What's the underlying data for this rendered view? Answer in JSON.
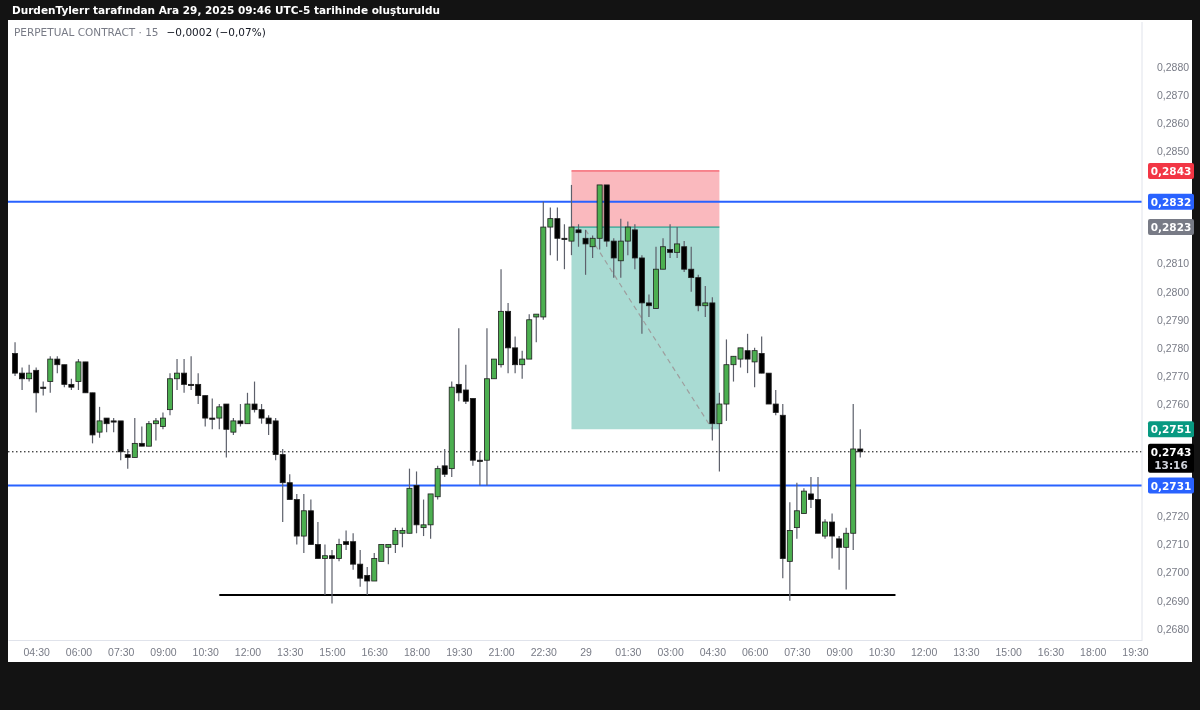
{
  "chart_data": {
    "type": "candlestick",
    "title": "PERPETUAL CONTRACT · 15",
    "subtitle": "−0,0002 (−0,07%)",
    "x": [
      "2025-12-28T03:45",
      "2025-12-28T04:00",
      "2025-12-28T04:15",
      "2025-12-28T04:30",
      "2025-12-28T04:45",
      "2025-12-28T05:00",
      "2025-12-28T05:15",
      "2025-12-28T05:30",
      "2025-12-28T05:45",
      "2025-12-28T06:00",
      "2025-12-28T06:15",
      "2025-12-28T06:30",
      "2025-12-28T06:45",
      "2025-12-28T07:00",
      "2025-12-28T07:15",
      "2025-12-28T07:30",
      "2025-12-28T07:45",
      "2025-12-28T08:00",
      "2025-12-28T08:15",
      "2025-12-28T08:30",
      "2025-12-28T08:45",
      "2025-12-28T09:00",
      "2025-12-28T09:15",
      "2025-12-28T09:30",
      "2025-12-28T09:45",
      "2025-12-28T10:00",
      "2025-12-28T10:15",
      "2025-12-28T10:30",
      "2025-12-28T10:45",
      "2025-12-28T11:00",
      "2025-12-28T11:15",
      "2025-12-28T11:30",
      "2025-12-28T11:45",
      "2025-12-28T12:00",
      "2025-12-28T12:15",
      "2025-12-28T12:30",
      "2025-12-28T12:45",
      "2025-12-28T13:00",
      "2025-12-28T13:15",
      "2025-12-28T13:30",
      "2025-12-28T13:45",
      "2025-12-28T14:00",
      "2025-12-28T14:15",
      "2025-12-28T14:30",
      "2025-12-28T14:45",
      "2025-12-28T15:00",
      "2025-12-28T15:15",
      "2025-12-28T15:30",
      "2025-12-28T15:45",
      "2025-12-28T16:00",
      "2025-12-28T16:15",
      "2025-12-28T16:30",
      "2025-12-28T16:45",
      "2025-12-28T17:00",
      "2025-12-28T17:15",
      "2025-12-28T17:30",
      "2025-12-28T17:45",
      "2025-12-28T18:00",
      "2025-12-28T18:15",
      "2025-12-28T18:30",
      "2025-12-28T18:45",
      "2025-12-28T19:00",
      "2025-12-28T19:15",
      "2025-12-28T19:30",
      "2025-12-28T19:45",
      "2025-12-28T20:00",
      "2025-12-28T20:15",
      "2025-12-28T20:30",
      "2025-12-28T20:45",
      "2025-12-28T21:00",
      "2025-12-28T21:15",
      "2025-12-28T21:30",
      "2025-12-28T21:45",
      "2025-12-28T22:00",
      "2025-12-28T22:15",
      "2025-12-28T22:30",
      "2025-12-28T22:45",
      "2025-12-28T23:00",
      "2025-12-28T23:15",
      "2025-12-28T23:30",
      "2025-12-28T23:45",
      "2025-12-29T00:00",
      "2025-12-29T00:15",
      "2025-12-29T00:30",
      "2025-12-29T00:45",
      "2025-12-29T01:00",
      "2025-12-29T01:15",
      "2025-12-29T01:30",
      "2025-12-29T01:45",
      "2025-12-29T02:00",
      "2025-12-29T02:15",
      "2025-12-29T02:30",
      "2025-12-29T02:45",
      "2025-12-29T03:00",
      "2025-12-29T03:15",
      "2025-12-29T03:30",
      "2025-12-29T03:45",
      "2025-12-29T04:00",
      "2025-12-29T04:15",
      "2025-12-29T04:30",
      "2025-12-29T04:45",
      "2025-12-29T05:00",
      "2025-12-29T05:15",
      "2025-12-29T05:30",
      "2025-12-29T05:45",
      "2025-12-29T06:00",
      "2025-12-29T06:15",
      "2025-12-29T06:30",
      "2025-12-29T06:45",
      "2025-12-29T07:00",
      "2025-12-29T07:15",
      "2025-12-29T07:30",
      "2025-12-29T07:45",
      "2025-12-29T08:00",
      "2025-12-29T08:15",
      "2025-12-29T08:30",
      "2025-12-29T08:45",
      "2025-12-29T09:00",
      "2025-12-29T09:15",
      "2025-12-29T09:30",
      "2025-12-29T09:45"
    ],
    "ohlc": [
      [
        0.2778,
        0.2782,
        0.277,
        0.2771
      ],
      [
        0.2771,
        0.2773,
        0.2765,
        0.2769
      ],
      [
        0.2769,
        0.2774,
        0.2768,
        0.2771
      ],
      [
        0.2772,
        0.2773,
        0.2757,
        0.2764
      ],
      [
        0.2766,
        0.2768,
        0.2763,
        0.2766
      ],
      [
        0.2768,
        0.2777,
        0.2764,
        0.2776
      ],
      [
        0.2776,
        0.2777,
        0.2771,
        0.2774
      ],
      [
        0.2774,
        0.2774,
        0.2766,
        0.2767
      ],
      [
        0.2767,
        0.2769,
        0.2765,
        0.2766
      ],
      [
        0.2768,
        0.2776,
        0.2765,
        0.2775
      ],
      [
        0.2775,
        0.2775,
        0.2764,
        0.2764
      ],
      [
        0.2764,
        0.2764,
        0.2746,
        0.2749
      ],
      [
        0.275,
        0.2759,
        0.2748,
        0.2754
      ],
      [
        0.2755,
        0.2755,
        0.275,
        0.2753
      ],
      [
        0.2754,
        0.2755,
        0.275,
        0.2754
      ],
      [
        0.2754,
        0.2754,
        0.274,
        0.2743
      ],
      [
        0.2742,
        0.2744,
        0.2737,
        0.2741
      ],
      [
        0.2741,
        0.2755,
        0.2741,
        0.2746
      ],
      [
        0.2746,
        0.2752,
        0.2745,
        0.2745
      ],
      [
        0.2745,
        0.2754,
        0.2745,
        0.2753
      ],
      [
        0.2753,
        0.2755,
        0.2747,
        0.2754
      ],
      [
        0.2752,
        0.2757,
        0.2751,
        0.2755
      ],
      [
        0.2758,
        0.2771,
        0.2756,
        0.2769
      ],
      [
        0.2769,
        0.2776,
        0.2765,
        0.2771
      ],
      [
        0.2771,
        0.2776,
        0.2764,
        0.2767
      ],
      [
        0.2767,
        0.2777,
        0.2765,
        0.2767
      ],
      [
        0.2767,
        0.2771,
        0.276,
        0.2763
      ],
      [
        0.2763,
        0.2763,
        0.2752,
        0.2755
      ],
      [
        0.2755,
        0.2762,
        0.2751,
        0.2755
      ],
      [
        0.2755,
        0.276,
        0.2751,
        0.2759
      ],
      [
        0.276,
        0.276,
        0.2741,
        0.2751
      ],
      [
        0.275,
        0.2755,
        0.2749,
        0.2754
      ],
      [
        0.2754,
        0.276,
        0.2752,
        0.2753
      ],
      [
        0.2753,
        0.2764,
        0.2753,
        0.276
      ],
      [
        0.276,
        0.2768,
        0.2757,
        0.2758
      ],
      [
        0.2758,
        0.276,
        0.2753,
        0.2755
      ],
      [
        0.2755,
        0.2756,
        0.2749,
        0.2753
      ],
      [
        0.2754,
        0.2755,
        0.274,
        0.2742
      ],
      [
        0.2742,
        0.2744,
        0.2718,
        0.2732
      ],
      [
        0.2732,
        0.2735,
        0.2726,
        0.2726
      ],
      [
        0.2726,
        0.2728,
        0.271,
        0.2713
      ],
      [
        0.2713,
        0.2728,
        0.2707,
        0.2722
      ],
      [
        0.2722,
        0.2726,
        0.271,
        0.271
      ],
      [
        0.271,
        0.2718,
        0.2705,
        0.2705
      ],
      [
        0.2705,
        0.271,
        0.2692,
        0.2706
      ],
      [
        0.2706,
        0.2708,
        0.2689,
        0.2705
      ],
      [
        0.2705,
        0.2712,
        0.2704,
        0.271
      ],
      [
        0.2711,
        0.2715,
        0.2708,
        0.271
      ],
      [
        0.2711,
        0.2714,
        0.2701,
        0.2703
      ],
      [
        0.2703,
        0.2708,
        0.2695,
        0.2698
      ],
      [
        0.2699,
        0.2702,
        0.2692,
        0.2697
      ],
      [
        0.2697,
        0.2707,
        0.2697,
        0.2705
      ],
      [
        0.2704,
        0.271,
        0.2704,
        0.271
      ],
      [
        0.2709,
        0.271,
        0.2703,
        0.271
      ],
      [
        0.271,
        0.2716,
        0.2707,
        0.2715
      ],
      [
        0.2714,
        0.2716,
        0.2709,
        0.2715
      ],
      [
        0.2714,
        0.2737,
        0.2714,
        0.273
      ],
      [
        0.2731,
        0.2736,
        0.2714,
        0.2717
      ],
      [
        0.2716,
        0.2726,
        0.2713,
        0.2717
      ],
      [
        0.2717,
        0.2728,
        0.2712,
        0.2728
      ],
      [
        0.2727,
        0.2738,
        0.2726,
        0.2737
      ],
      [
        0.2738,
        0.2744,
        0.2734,
        0.2735
      ],
      [
        0.2737,
        0.2768,
        0.2734,
        0.2766
      ],
      [
        0.2767,
        0.2787,
        0.2761,
        0.2764
      ],
      [
        0.2765,
        0.2774,
        0.276,
        0.2761
      ],
      [
        0.2762,
        0.2762,
        0.2738,
        0.274
      ],
      [
        0.274,
        0.2743,
        0.2731,
        0.274
      ],
      [
        0.274,
        0.2787,
        0.2731,
        0.2769
      ],
      [
        0.2769,
        0.2776,
        0.2769,
        0.2776
      ],
      [
        0.2774,
        0.2808,
        0.2773,
        0.2793
      ],
      [
        0.2793,
        0.2796,
        0.2771,
        0.278
      ],
      [
        0.278,
        0.2784,
        0.2771,
        0.2774
      ],
      [
        0.2774,
        0.2779,
        0.2769,
        0.2776
      ],
      [
        0.2776,
        0.2792,
        0.2776,
        0.279
      ],
      [
        0.2791,
        0.2792,
        0.2782,
        0.2792
      ],
      [
        0.2791,
        0.2832,
        0.279,
        0.2823
      ],
      [
        0.2823,
        0.283,
        0.2813,
        0.2826
      ],
      [
        0.2826,
        0.283,
        0.2811,
        0.2819
      ],
      [
        0.2819,
        0.2824,
        0.2808,
        0.2819
      ],
      [
        0.2818,
        0.2838,
        0.2813,
        0.2823
      ],
      [
        0.2822,
        0.2824,
        0.2816,
        0.2821
      ],
      [
        0.2819,
        0.2822,
        0.2806,
        0.2817
      ],
      [
        0.2816,
        0.282,
        0.2812,
        0.2819
      ],
      [
        0.2819,
        0.2838,
        0.2815,
        0.2838
      ],
      [
        0.2838,
        0.2838,
        0.2816,
        0.2818
      ],
      [
        0.2818,
        0.2819,
        0.2805,
        0.2812
      ],
      [
        0.2811,
        0.2826,
        0.2805,
        0.2818
      ],
      [
        0.2818,
        0.2825,
        0.2813,
        0.2823
      ],
      [
        0.2822,
        0.2824,
        0.2808,
        0.2812
      ],
      [
        0.2812,
        0.2813,
        0.2785,
        0.2796
      ],
      [
        0.2796,
        0.2799,
        0.2791,
        0.2795
      ],
      [
        0.2794,
        0.2816,
        0.2794,
        0.2808
      ],
      [
        0.2808,
        0.2819,
        0.2808,
        0.2816
      ],
      [
        0.2815,
        0.2824,
        0.2812,
        0.2814
      ],
      [
        0.2814,
        0.2823,
        0.2812,
        0.2817
      ],
      [
        0.2816,
        0.2818,
        0.2807,
        0.2808
      ],
      [
        0.2808,
        0.2816,
        0.28,
        0.2805
      ],
      [
        0.2805,
        0.2806,
        0.2793,
        0.2795
      ],
      [
        0.2795,
        0.2802,
        0.2791,
        0.2796
      ],
      [
        0.2796,
        0.2798,
        0.2747,
        0.2753
      ],
      [
        0.2753,
        0.2764,
        0.2736,
        0.276
      ],
      [
        0.276,
        0.2783,
        0.2754,
        0.2774
      ],
      [
        0.2774,
        0.2777,
        0.2768,
        0.2777
      ],
      [
        0.2776,
        0.278,
        0.2773,
        0.278
      ],
      [
        0.2779,
        0.2785,
        0.2771,
        0.2776
      ],
      [
        0.2775,
        0.278,
        0.2766,
        0.2779
      ],
      [
        0.2778,
        0.2784,
        0.2771,
        0.2771
      ],
      [
        0.2771,
        0.2771,
        0.276,
        0.276
      ],
      [
        0.276,
        0.2765,
        0.2756,
        0.2757
      ],
      [
        0.2756,
        0.276,
        0.2698,
        0.2705
      ],
      [
        0.2704,
        0.2725,
        0.269,
        0.2715
      ],
      [
        0.2716,
        0.2732,
        0.2712,
        0.2722
      ],
      [
        0.2721,
        0.273,
        0.2721,
        0.2729
      ],
      [
        0.2728,
        0.2734,
        0.2723,
        0.2726
      ],
      [
        0.2726,
        0.2734,
        0.2714,
        0.2714
      ],
      [
        0.2713,
        0.2719,
        0.2712,
        0.2718
      ],
      [
        0.2718,
        0.2721,
        0.2705,
        0.2713
      ],
      [
        0.2712,
        0.2713,
        0.2701,
        0.2709
      ],
      [
        0.2709,
        0.2716,
        0.2694,
        0.2714
      ],
      [
        0.2714,
        0.276,
        0.2708,
        0.2744
      ],
      [
        0.2744,
        0.2751,
        0.2741,
        0.2743
      ]
    ],
    "series": [
      {
        "type": "line",
        "x": [
          "2025-12-28T23:30",
          "2025-12-29T04:45"
        ],
        "values": [
          0.2843,
          0.2843
        ],
        "upper": [
          0.2843,
          0.2843
        ],
        "lower": [
          0.2823,
          0.2823
        ],
        "color": "#f23645"
      },
      {
        "type": "line",
        "x": [
          "2025-12-28T23:30",
          "2025-12-29T04:45"
        ],
        "values": [
          0.2823,
          0.2823
        ],
        "upper": [
          0.2823,
          0.2823
        ],
        "lower": [
          0.2751,
          0.2751
        ],
        "color": "#089981"
      },
      {
        "type": "line",
        "x": [
          "2025-12-29T00:00",
          "2025-12-29T04:30"
        ],
        "values": [
          0.2822,
          0.2751
        ],
        "color": "#9e9e9e",
        "line_style": "dashed"
      },
      {
        "type": "line",
        "x": [
          "2025-12-28T11:00",
          "2025-12-29T11:00"
        ],
        "values": [
          0.2692,
          0.2692
        ],
        "color": "#000000",
        "line_style": "solid"
      }
    ],
    "xlim": [
      "2025-12-28T03:30",
      "2025-12-29T19:45"
    ],
    "xticks": [
      {
        "value": "2025-12-28T04:30",
        "label": "04:30"
      },
      {
        "value": "2025-12-28T06:00",
        "label": "06:00"
      },
      {
        "value": "2025-12-28T07:30",
        "label": "07:30"
      },
      {
        "value": "2025-12-28T09:00",
        "label": "09:00"
      },
      {
        "value": "2025-12-28T10:30",
        "label": "10:30"
      },
      {
        "value": "2025-12-28T12:00",
        "label": "12:00"
      },
      {
        "value": "2025-12-28T13:30",
        "label": "13:30"
      },
      {
        "value": "2025-12-28T15:00",
        "label": "15:00"
      },
      {
        "value": "2025-12-28T16:30",
        "label": "16:30"
      },
      {
        "value": "2025-12-28T18:00",
        "label": "18:00"
      },
      {
        "value": "2025-12-28T19:30",
        "label": "19:30"
      },
      {
        "value": "2025-12-28T21:00",
        "label": "21:00"
      },
      {
        "value": "2025-12-28T22:30",
        "label": "22:30"
      },
      {
        "value": "2025-12-29T00:00",
        "label": "29"
      },
      {
        "value": "2025-12-29T01:30",
        "label": "01:30"
      },
      {
        "value": "2025-12-29T03:00",
        "label": "03:00"
      },
      {
        "value": "2025-12-29T04:30",
        "label": "04:30"
      },
      {
        "value": "2025-12-29T06:00",
        "label": "06:00"
      },
      {
        "value": "2025-12-29T07:30",
        "label": "07:30"
      },
      {
        "value": "2025-12-29T09:00",
        "label": "09:00"
      },
      {
        "value": "2025-12-29T10:30",
        "label": "10:30"
      },
      {
        "value": "2025-12-29T12:00",
        "label": "12:00"
      },
      {
        "value": "2025-12-29T13:30",
        "label": "13:30"
      },
      {
        "value": "2025-12-29T15:00",
        "label": "15:00"
      },
      {
        "value": "2025-12-29T16:30",
        "label": "16:30"
      },
      {
        "value": "2025-12-29T18:00",
        "label": "18:00"
      },
      {
        "value": "2025-12-29T19:30",
        "label": "19:30"
      }
    ],
    "ylim": [
      0.2676,
      0.2896
    ],
    "yticks": [
      {
        "value": 0.268,
        "label": "0,2680"
      },
      {
        "value": 0.269,
        "label": "0,2690"
      },
      {
        "value": 0.27,
        "label": "0,2700"
      },
      {
        "value": 0.271,
        "label": "0,2710"
      },
      {
        "value": 0.272,
        "label": "0,2720"
      },
      {
        "value": 0.276,
        "label": "0,2760"
      },
      {
        "value": 0.277,
        "label": "0,2770"
      },
      {
        "value": 0.278,
        "label": "0,2780"
      },
      {
        "value": 0.279,
        "label": "0,2790"
      },
      {
        "value": 0.28,
        "label": "0,2800"
      },
      {
        "value": 0.281,
        "label": "0,2810"
      },
      {
        "value": 0.285,
        "label": "0,2850"
      },
      {
        "value": 0.286,
        "label": "0,2860"
      },
      {
        "value": 0.287,
        "label": "0,2870"
      },
      {
        "value": 0.288,
        "label": "0,2880"
      }
    ],
    "ref_lines": [
      {
        "axis": "y",
        "value": 0.2832,
        "label": "0,2832",
        "color": "#2962ff",
        "line_style": "solid"
      },
      {
        "axis": "y",
        "value": 0.2731,
        "label": "0,2731",
        "color": "#2962ff",
        "line_style": "solid"
      },
      {
        "axis": "y",
        "value": 0.2743,
        "label": "0,2743",
        "color": "#000000",
        "line_style": "dotted"
      }
    ],
    "annotations": [
      "DurdenTylerr tarafından Ara 29, 2025 09:46 UTC-5 tarihinde oluşturuldu",
      "0,2843",
      "0,2823",
      "0,2751",
      "13:16"
    ]
  }
}
